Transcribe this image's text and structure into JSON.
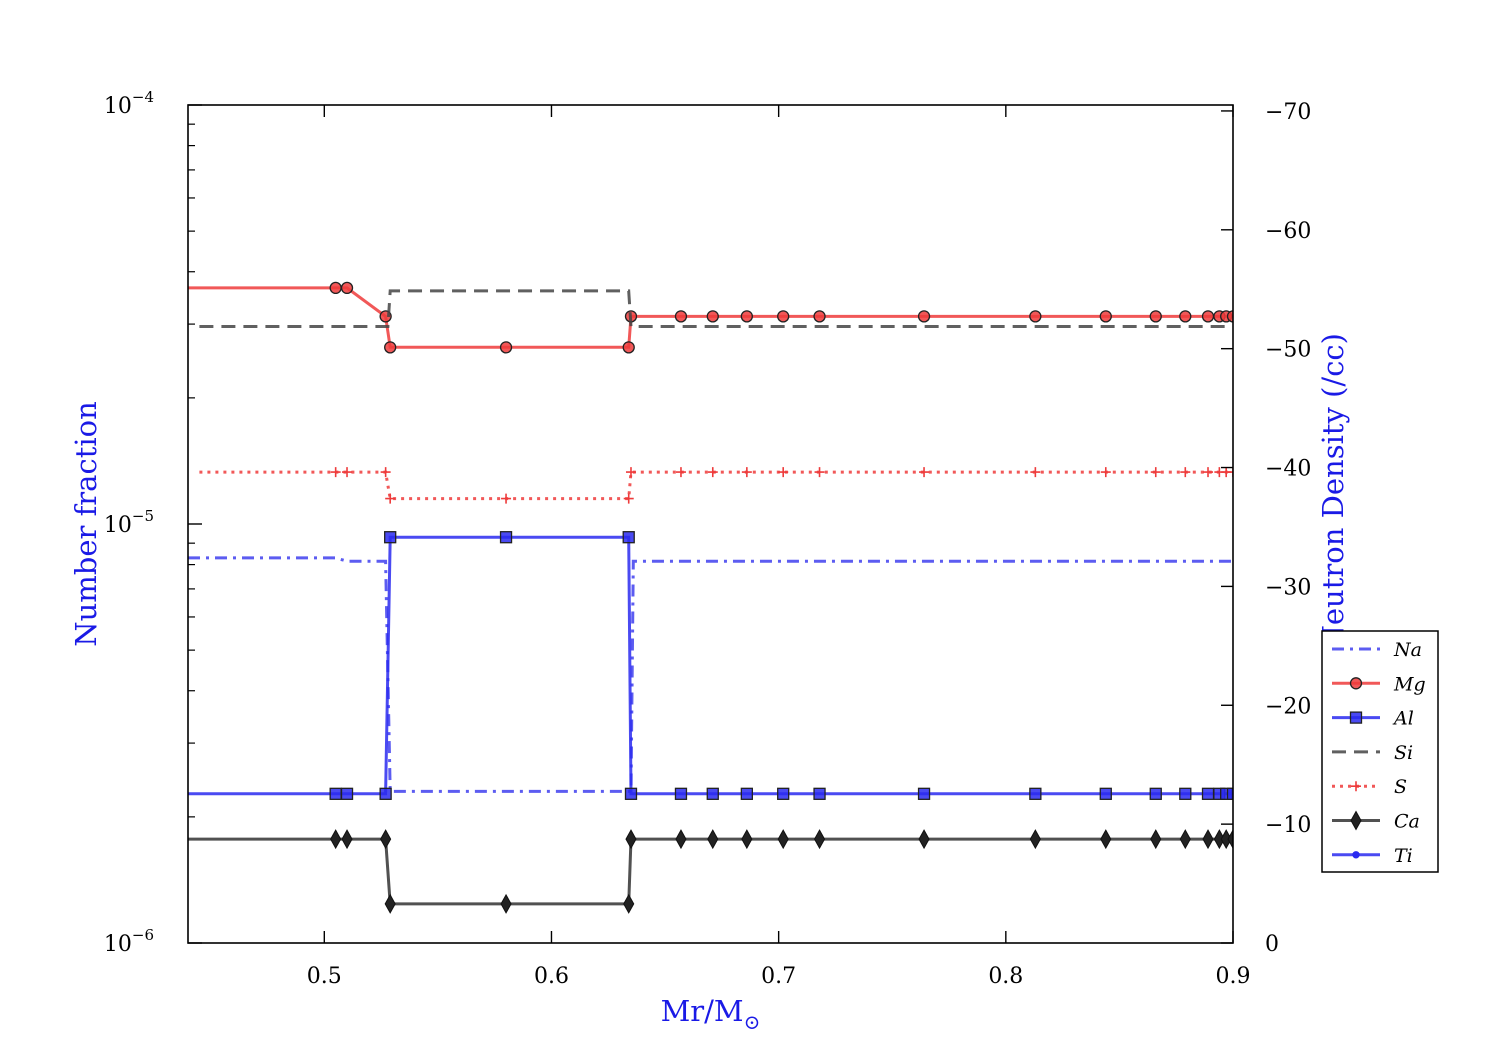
{
  "chart_data": {
    "type": "line",
    "xlabel": "Mr/M",
    "xlabel_sub": "⊙",
    "ylabel": "Number fraction",
    "y2label": "Log Neutron Density (/cc)",
    "xlim": [
      0.44,
      0.9
    ],
    "ylim": [
      1e-06,
      0.0001
    ],
    "yscale": "log",
    "y2lim": [
      0,
      70.5
    ],
    "x_ticks": [
      0.5,
      0.6,
      0.7,
      0.8,
      0.9
    ],
    "x_tick_labels": [
      "0.5",
      "0.6",
      "0.7",
      "0.8",
      "0.9"
    ],
    "y_tick_labels": [
      {
        "value": 0.0001,
        "base": "10",
        "exp": "−4"
      },
      {
        "value": 1e-05,
        "base": "10",
        "exp": "−5"
      },
      {
        "value": 1e-06,
        "base": "10",
        "exp": "−6"
      }
    ],
    "y2_ticks": [
      0,
      10,
      20,
      30,
      40,
      50,
      60,
      70
    ],
    "y2_tick_labels": [
      "0",
      "−10",
      "−20",
      "−30",
      "−40",
      "−50",
      "−60",
      "−70"
    ],
    "legend_position": "lower-right",
    "grid": false,
    "series": [
      {
        "name": "Na",
        "color": "#4040ee",
        "linestyle": "dashdot",
        "marker": "none",
        "x": [
          0.44,
          0.505,
          0.51,
          0.527,
          0.529,
          0.53,
          0.58,
          0.634,
          0.635,
          0.636,
          0.9
        ],
        "y": [
          8.3e-06,
          8.3e-06,
          8.15e-06,
          8.15e-06,
          2.3e-06,
          2.3e-06,
          2.3e-06,
          2.3e-06,
          2.3e-06,
          8.15e-06,
          8.15e-06
        ]
      },
      {
        "name": "Mg",
        "color": "#ee3b3b",
        "linestyle": "solid",
        "marker": "circle",
        "x": [
          0.44,
          0.505,
          0.51,
          0.527,
          0.529,
          0.53,
          0.58,
          0.634,
          0.635,
          0.636,
          0.657,
          0.671,
          0.686,
          0.702,
          0.718,
          0.764,
          0.813,
          0.844,
          0.866,
          0.879,
          0.889,
          0.894,
          0.897,
          0.9
        ],
        "y": [
          3.66e-05,
          3.66e-05,
          3.66e-05,
          3.13e-05,
          2.64e-05,
          2.64e-05,
          2.64e-05,
          2.64e-05,
          3.13e-05,
          3.13e-05,
          3.13e-05,
          3.13e-05,
          3.13e-05,
          3.13e-05,
          3.13e-05,
          3.13e-05,
          3.13e-05,
          3.13e-05,
          3.13e-05,
          3.13e-05,
          3.13e-05,
          3.13e-05,
          3.13e-05,
          3.13e-05
        ],
        "markers_x": [
          0.505,
          0.51,
          0.527,
          0.529,
          0.58,
          0.634,
          0.635,
          0.657,
          0.671,
          0.686,
          0.702,
          0.718,
          0.764,
          0.813,
          0.844,
          0.866,
          0.879,
          0.889,
          0.894,
          0.897,
          0.9
        ]
      },
      {
        "name": "Al",
        "color": "#2a2af0",
        "linestyle": "solid",
        "marker": "square",
        "x": [
          0.44,
          0.505,
          0.51,
          0.527,
          0.529,
          0.53,
          0.58,
          0.634,
          0.635,
          0.636,
          0.657,
          0.671,
          0.686,
          0.702,
          0.718,
          0.764,
          0.813,
          0.844,
          0.866,
          0.879,
          0.889,
          0.894,
          0.897,
          0.9
        ],
        "y": [
          2.27e-06,
          2.27e-06,
          2.27e-06,
          2.27e-06,
          9.3e-06,
          9.3e-06,
          9.3e-06,
          9.3e-06,
          2.27e-06,
          2.27e-06,
          2.27e-06,
          2.27e-06,
          2.27e-06,
          2.27e-06,
          2.27e-06,
          2.27e-06,
          2.27e-06,
          2.27e-06,
          2.27e-06,
          2.27e-06,
          2.27e-06,
          2.27e-06,
          2.27e-06,
          2.27e-06
        ],
        "markers_x": [
          0.505,
          0.51,
          0.527,
          0.529,
          0.58,
          0.634,
          0.635,
          0.657,
          0.671,
          0.686,
          0.702,
          0.718,
          0.764,
          0.813,
          0.844,
          0.866,
          0.879,
          0.889,
          0.894,
          0.897,
          0.9
        ]
      },
      {
        "name": "Si",
        "color": "#444444",
        "linestyle": "dashed",
        "marker": "none",
        "x": [
          0.445,
          0.528,
          0.529,
          0.634,
          0.635,
          0.9
        ],
        "y": [
          2.96e-05,
          2.96e-05,
          3.6e-05,
          3.6e-05,
          2.96e-05,
          2.96e-05
        ]
      },
      {
        "name": "S",
        "color": "#ee3b3b",
        "linestyle": "dotted",
        "marker": "plus",
        "x": [
          0.445,
          0.505,
          0.51,
          0.527,
          0.529,
          0.53,
          0.58,
          0.634,
          0.635,
          0.636,
          0.657,
          0.671,
          0.686,
          0.702,
          0.718,
          0.764,
          0.813,
          0.844,
          0.866,
          0.879,
          0.889,
          0.894,
          0.897,
          0.9
        ],
        "y": [
          1.33e-05,
          1.33e-05,
          1.33e-05,
          1.33e-05,
          1.15e-05,
          1.15e-05,
          1.15e-05,
          1.15e-05,
          1.33e-05,
          1.33e-05,
          1.33e-05,
          1.33e-05,
          1.33e-05,
          1.33e-05,
          1.33e-05,
          1.33e-05,
          1.33e-05,
          1.33e-05,
          1.33e-05,
          1.33e-05,
          1.33e-05,
          1.33e-05,
          1.33e-05,
          1.33e-05
        ],
        "markers_x": [
          0.505,
          0.51,
          0.527,
          0.529,
          0.58,
          0.634,
          0.635,
          0.657,
          0.671,
          0.686,
          0.702,
          0.718,
          0.764,
          0.813,
          0.844,
          0.866,
          0.879,
          0.889,
          0.894,
          0.897,
          0.9
        ]
      },
      {
        "name": "Ca",
        "color": "#333333",
        "linestyle": "solid",
        "marker": "diamond",
        "x": [
          0.44,
          0.505,
          0.51,
          0.527,
          0.529,
          0.53,
          0.58,
          0.634,
          0.635,
          0.636,
          0.657,
          0.671,
          0.686,
          0.702,
          0.718,
          0.764,
          0.813,
          0.844,
          0.866,
          0.879,
          0.889,
          0.894,
          0.897,
          0.9
        ],
        "y": [
          1.77e-06,
          1.77e-06,
          1.77e-06,
          1.77e-06,
          1.24e-06,
          1.24e-06,
          1.24e-06,
          1.24e-06,
          1.77e-06,
          1.77e-06,
          1.77e-06,
          1.77e-06,
          1.77e-06,
          1.77e-06,
          1.77e-06,
          1.77e-06,
          1.77e-06,
          1.77e-06,
          1.77e-06,
          1.77e-06,
          1.77e-06,
          1.77e-06,
          1.77e-06,
          1.77e-06
        ],
        "markers_x": [
          0.505,
          0.51,
          0.527,
          0.529,
          0.58,
          0.634,
          0.635,
          0.657,
          0.671,
          0.686,
          0.702,
          0.718,
          0.764,
          0.813,
          0.844,
          0.866,
          0.879,
          0.889,
          0.894,
          0.897,
          0.9
        ]
      },
      {
        "name": "Ti",
        "color": "#2a2af0",
        "linestyle": "solid",
        "marker": "dot",
        "x": [],
        "y": []
      }
    ]
  }
}
